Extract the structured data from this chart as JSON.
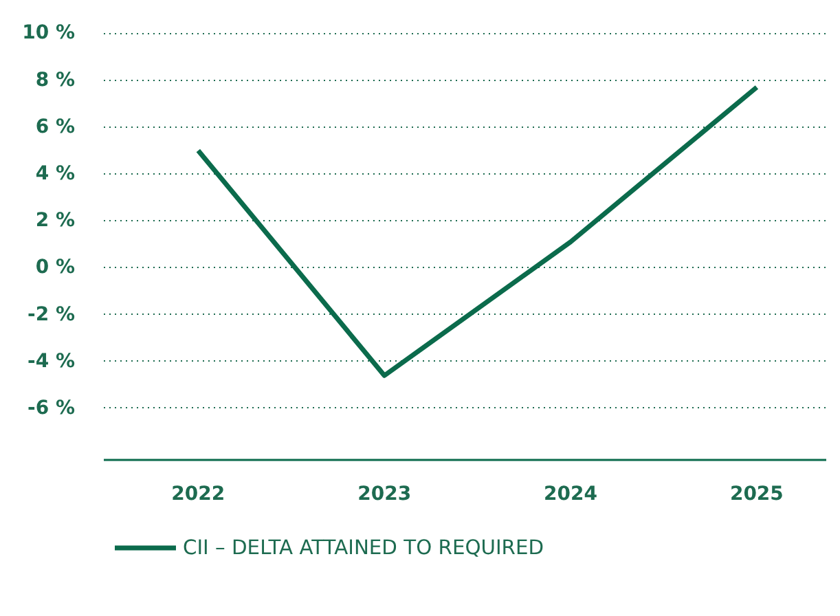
{
  "chart_data": {
    "type": "line",
    "categories": [
      "2022",
      "2023",
      "2024",
      "2025"
    ],
    "series": [
      {
        "name": "CII – DELTA ATTAINED TO REQUIRED",
        "color": "#0b6b4c",
        "values": [
          5,
          -4.6,
          1.1,
          7.7
        ]
      }
    ],
    "ylim": [
      -8.2,
      10.1
    ],
    "yticks": [
      {
        "value": 10,
        "label": "10 %"
      },
      {
        "value": 8,
        "label": "8 %"
      },
      {
        "value": 6,
        "label": "6 %"
      },
      {
        "value": 4,
        "label": "4 %"
      },
      {
        "value": 2,
        "label": "2 %"
      },
      {
        "value": 0,
        "label": "0 %"
      },
      {
        "value": -2,
        "label": "-2 %"
      },
      {
        "value": -4,
        "label": "-4 %"
      },
      {
        "value": -6,
        "label": "-6 %"
      }
    ],
    "grid": "y",
    "legend": "bottom left",
    "marker": "none",
    "line_style": "solid"
  }
}
